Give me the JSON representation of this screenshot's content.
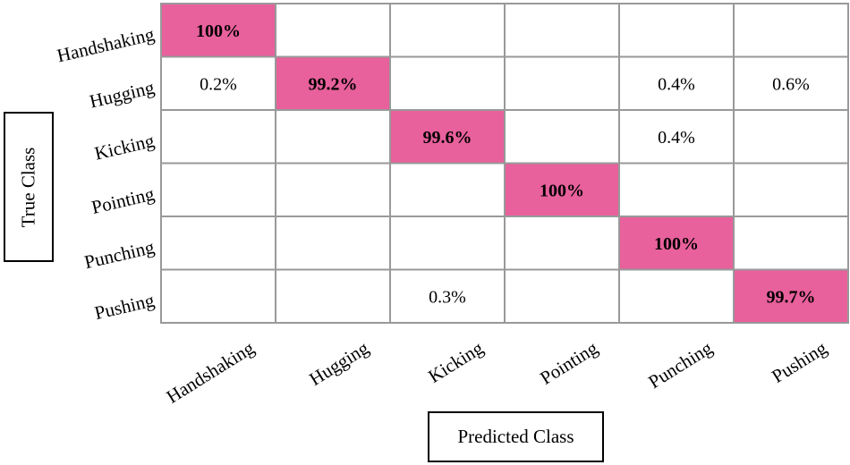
{
  "chart_data": {
    "type": "heatmap",
    "title": "",
    "xlabel": "Predicted Class",
    "ylabel": "True Class",
    "rows": [
      "Handshaking",
      "Hugging",
      "Kicking",
      "Pointing",
      "Punching",
      "Pushing"
    ],
    "columns": [
      "Handshaking",
      "Hugging",
      "Kicking",
      "Pointing",
      "Punching",
      "Pushing"
    ],
    "cells": [
      [
        "100%",
        "",
        "",
        "",
        "",
        ""
      ],
      [
        "0.2%",
        "99.2%",
        "",
        "",
        "0.4%",
        "0.6%"
      ],
      [
        "",
        "",
        "99.6%",
        "",
        "0.4%",
        ""
      ],
      [
        "",
        "",
        "",
        "100%",
        "",
        ""
      ],
      [
        "",
        "",
        "",
        "",
        "100%",
        ""
      ],
      [
        "",
        "",
        "0.3%",
        "",
        "",
        "99.7%"
      ]
    ],
    "highlight_color": "#e8609c",
    "grid_color": "#999999"
  }
}
